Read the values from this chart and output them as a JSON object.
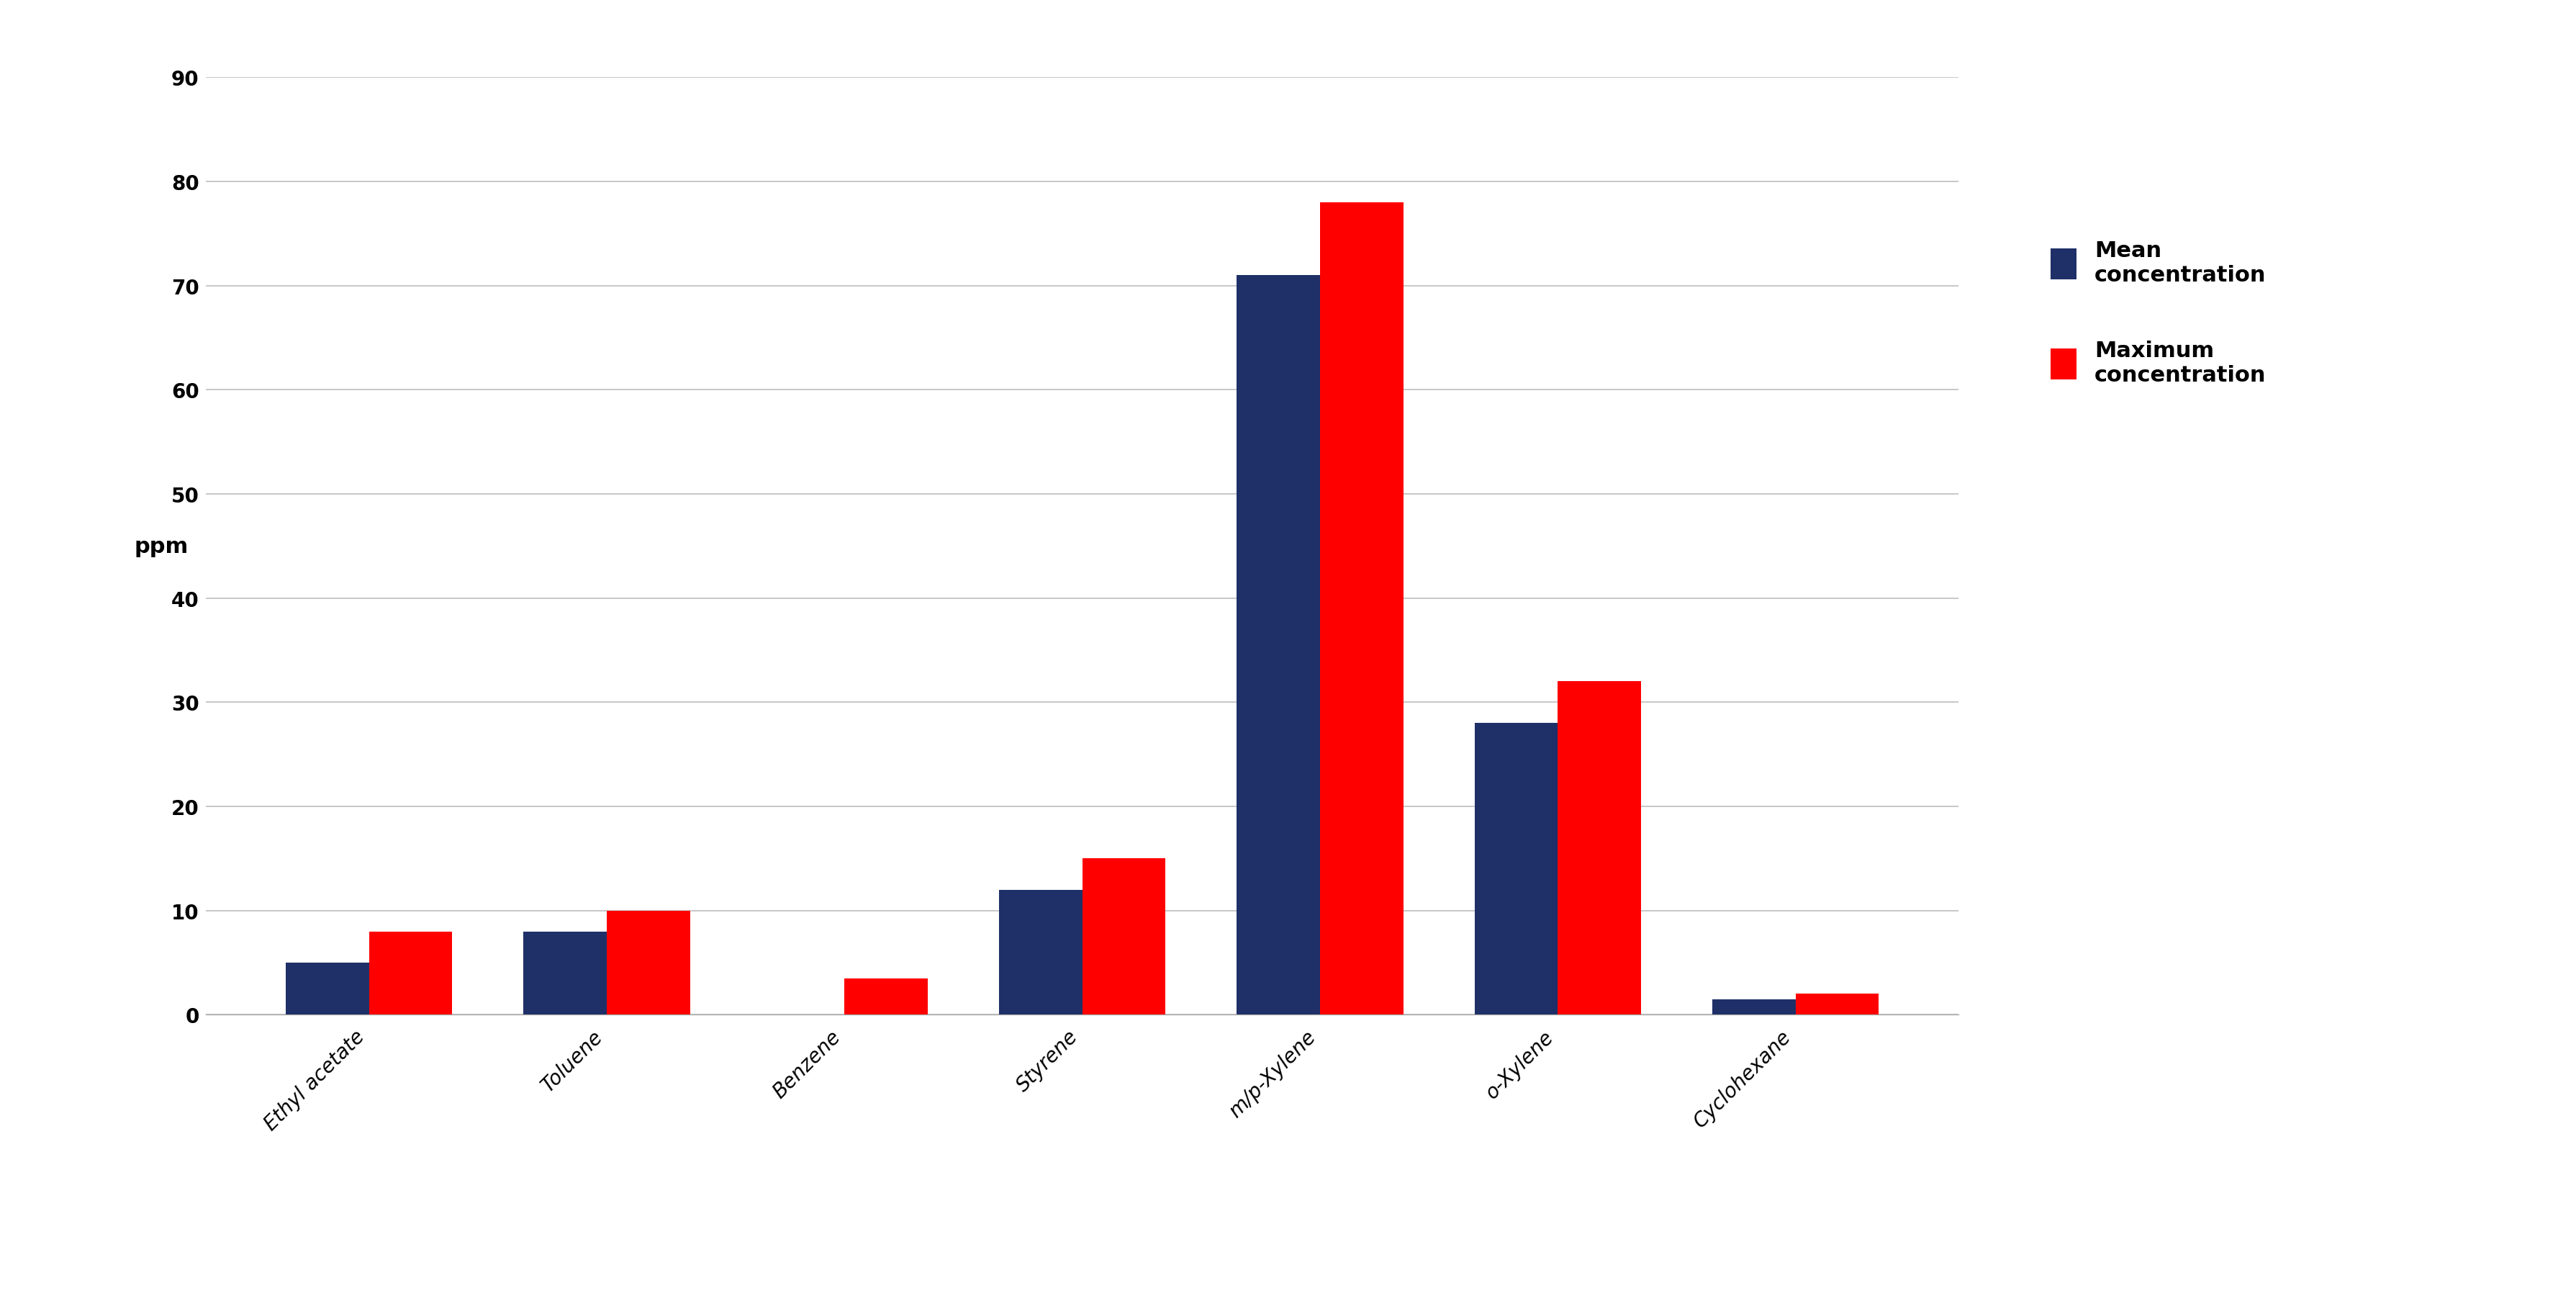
{
  "categories": [
    "Ethyl acetate",
    "Toluene",
    "Benzene",
    "Styrene",
    "m/p-Xylene",
    "o-Xylene",
    "Cyclohexane"
  ],
  "mean_concentration": [
    5.0,
    8.0,
    0,
    12.0,
    71.0,
    28.0,
    1.5
  ],
  "max_concentration": [
    8.0,
    10.0,
    3.5,
    15.0,
    78.0,
    32.0,
    2.0
  ],
  "mean_color": "#1F3068",
  "max_color": "#FF0000",
  "ylabel": "ppm",
  "ylim": [
    0,
    90
  ],
  "yticks": [
    0,
    10,
    20,
    30,
    40,
    50,
    60,
    70,
    80,
    90
  ],
  "legend_labels": [
    "Mean\nconcentration",
    "Maximum\nconcentration"
  ],
  "bar_width": 0.35,
  "background_color": "#FFFFFF",
  "grid_color": "#BEBEBE",
  "ylabel_fontsize": 22,
  "tick_fontsize": 20,
  "xtick_fontsize": 20,
  "legend_fontsize": 22,
  "legend_title_fontsize": 22
}
